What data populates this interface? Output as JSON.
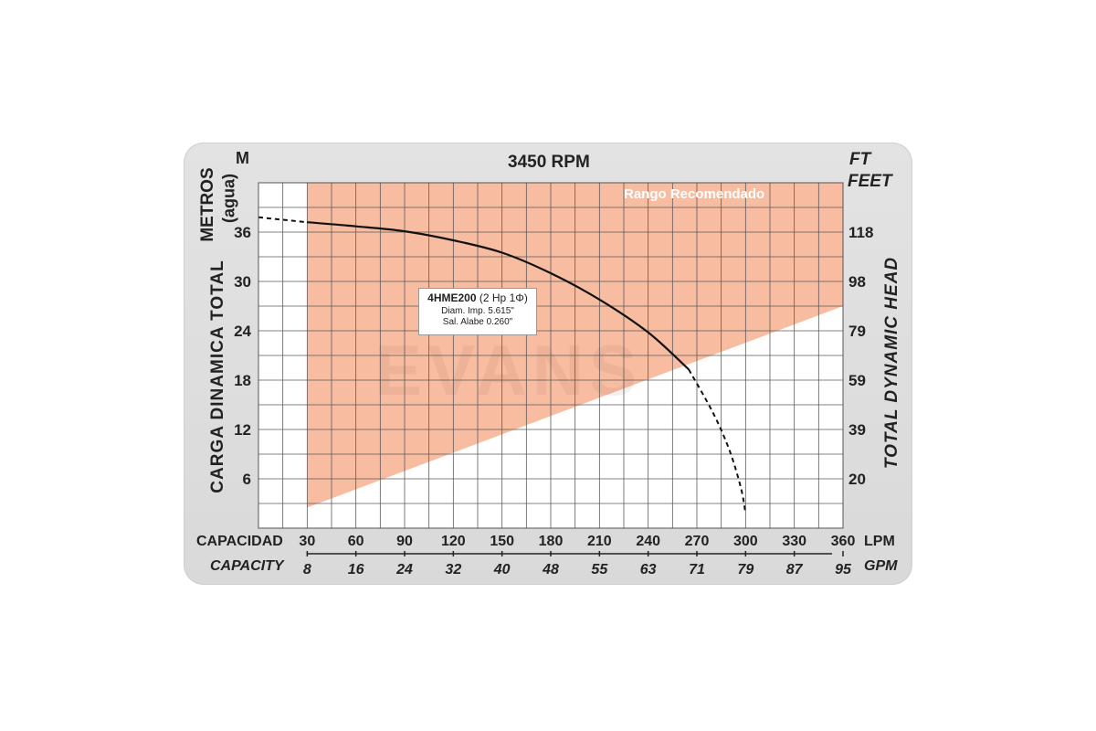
{
  "chart_data": {
    "type": "line",
    "title": "3450 RPM",
    "y_unit_left": "M",
    "y_unit_right_1": "FT",
    "y_unit_right_2": "FEET",
    "ylabel_left_1": "METROS",
    "ylabel_left_2": "(agua)",
    "ylabel_left_3": "CARGA DINAMICA TOTAL",
    "ylabel_right": "TOTAL DYNAMIC HEAD",
    "xlabel_1": "CAPACIDAD",
    "xlabel_2": "CAPACITY",
    "x_unit_1": "LPM",
    "x_unit_2": "GPM",
    "x_ticks_lpm": [
      "30",
      "60",
      "90",
      "120",
      "150",
      "180",
      "210",
      "240",
      "270",
      "300",
      "330",
      "360"
    ],
    "x_ticks_gpm": [
      "8",
      "16",
      "24",
      "32",
      "40",
      "48",
      "55",
      "63",
      "71",
      "79",
      "87",
      "95"
    ],
    "y_ticks_m": [
      "6",
      "12",
      "18",
      "24",
      "30",
      "36"
    ],
    "y_ticks_ft": [
      "20",
      "39",
      "59",
      "79",
      "98",
      "118"
    ],
    "xlim": [
      0,
      360
    ],
    "ylim": [
      0,
      42
    ],
    "grid": true,
    "recommended_range_label": "Rango Recomendado",
    "recommended_range_lower_edge": [
      [
        30,
        2.5
      ],
      [
        360,
        27
      ]
    ],
    "recommended_range_x_start": 30,
    "series": [
      {
        "name": "4HME200",
        "solid": [
          [
            30,
            37.2
          ],
          [
            60,
            36.7
          ],
          [
            90,
            36.1
          ],
          [
            120,
            35.0
          ],
          [
            150,
            33.5
          ],
          [
            180,
            31.0
          ],
          [
            210,
            27.8
          ],
          [
            240,
            23.8
          ],
          [
            265,
            19.3
          ]
        ],
        "dashed_start": [
          [
            0,
            37.8
          ],
          [
            30,
            37.2
          ]
        ],
        "dashed_end": [
          [
            265,
            19.3
          ],
          [
            280,
            14.0
          ],
          [
            290,
            9.5
          ],
          [
            297,
            5.0
          ],
          [
            300,
            1.8
          ]
        ]
      }
    ],
    "annotation": {
      "model": "4HME200",
      "power": "(2 Hp 1Φ)",
      "line2": "Diam. Imp. 5.615\"",
      "line3": "Sal. Alabe 0.260\""
    },
    "colors": {
      "range_fill": "#f7b597",
      "curve": "#111111",
      "grid": "#5a5a5a",
      "panel": "#dcdcdc"
    },
    "watermark": "EVANS"
  }
}
